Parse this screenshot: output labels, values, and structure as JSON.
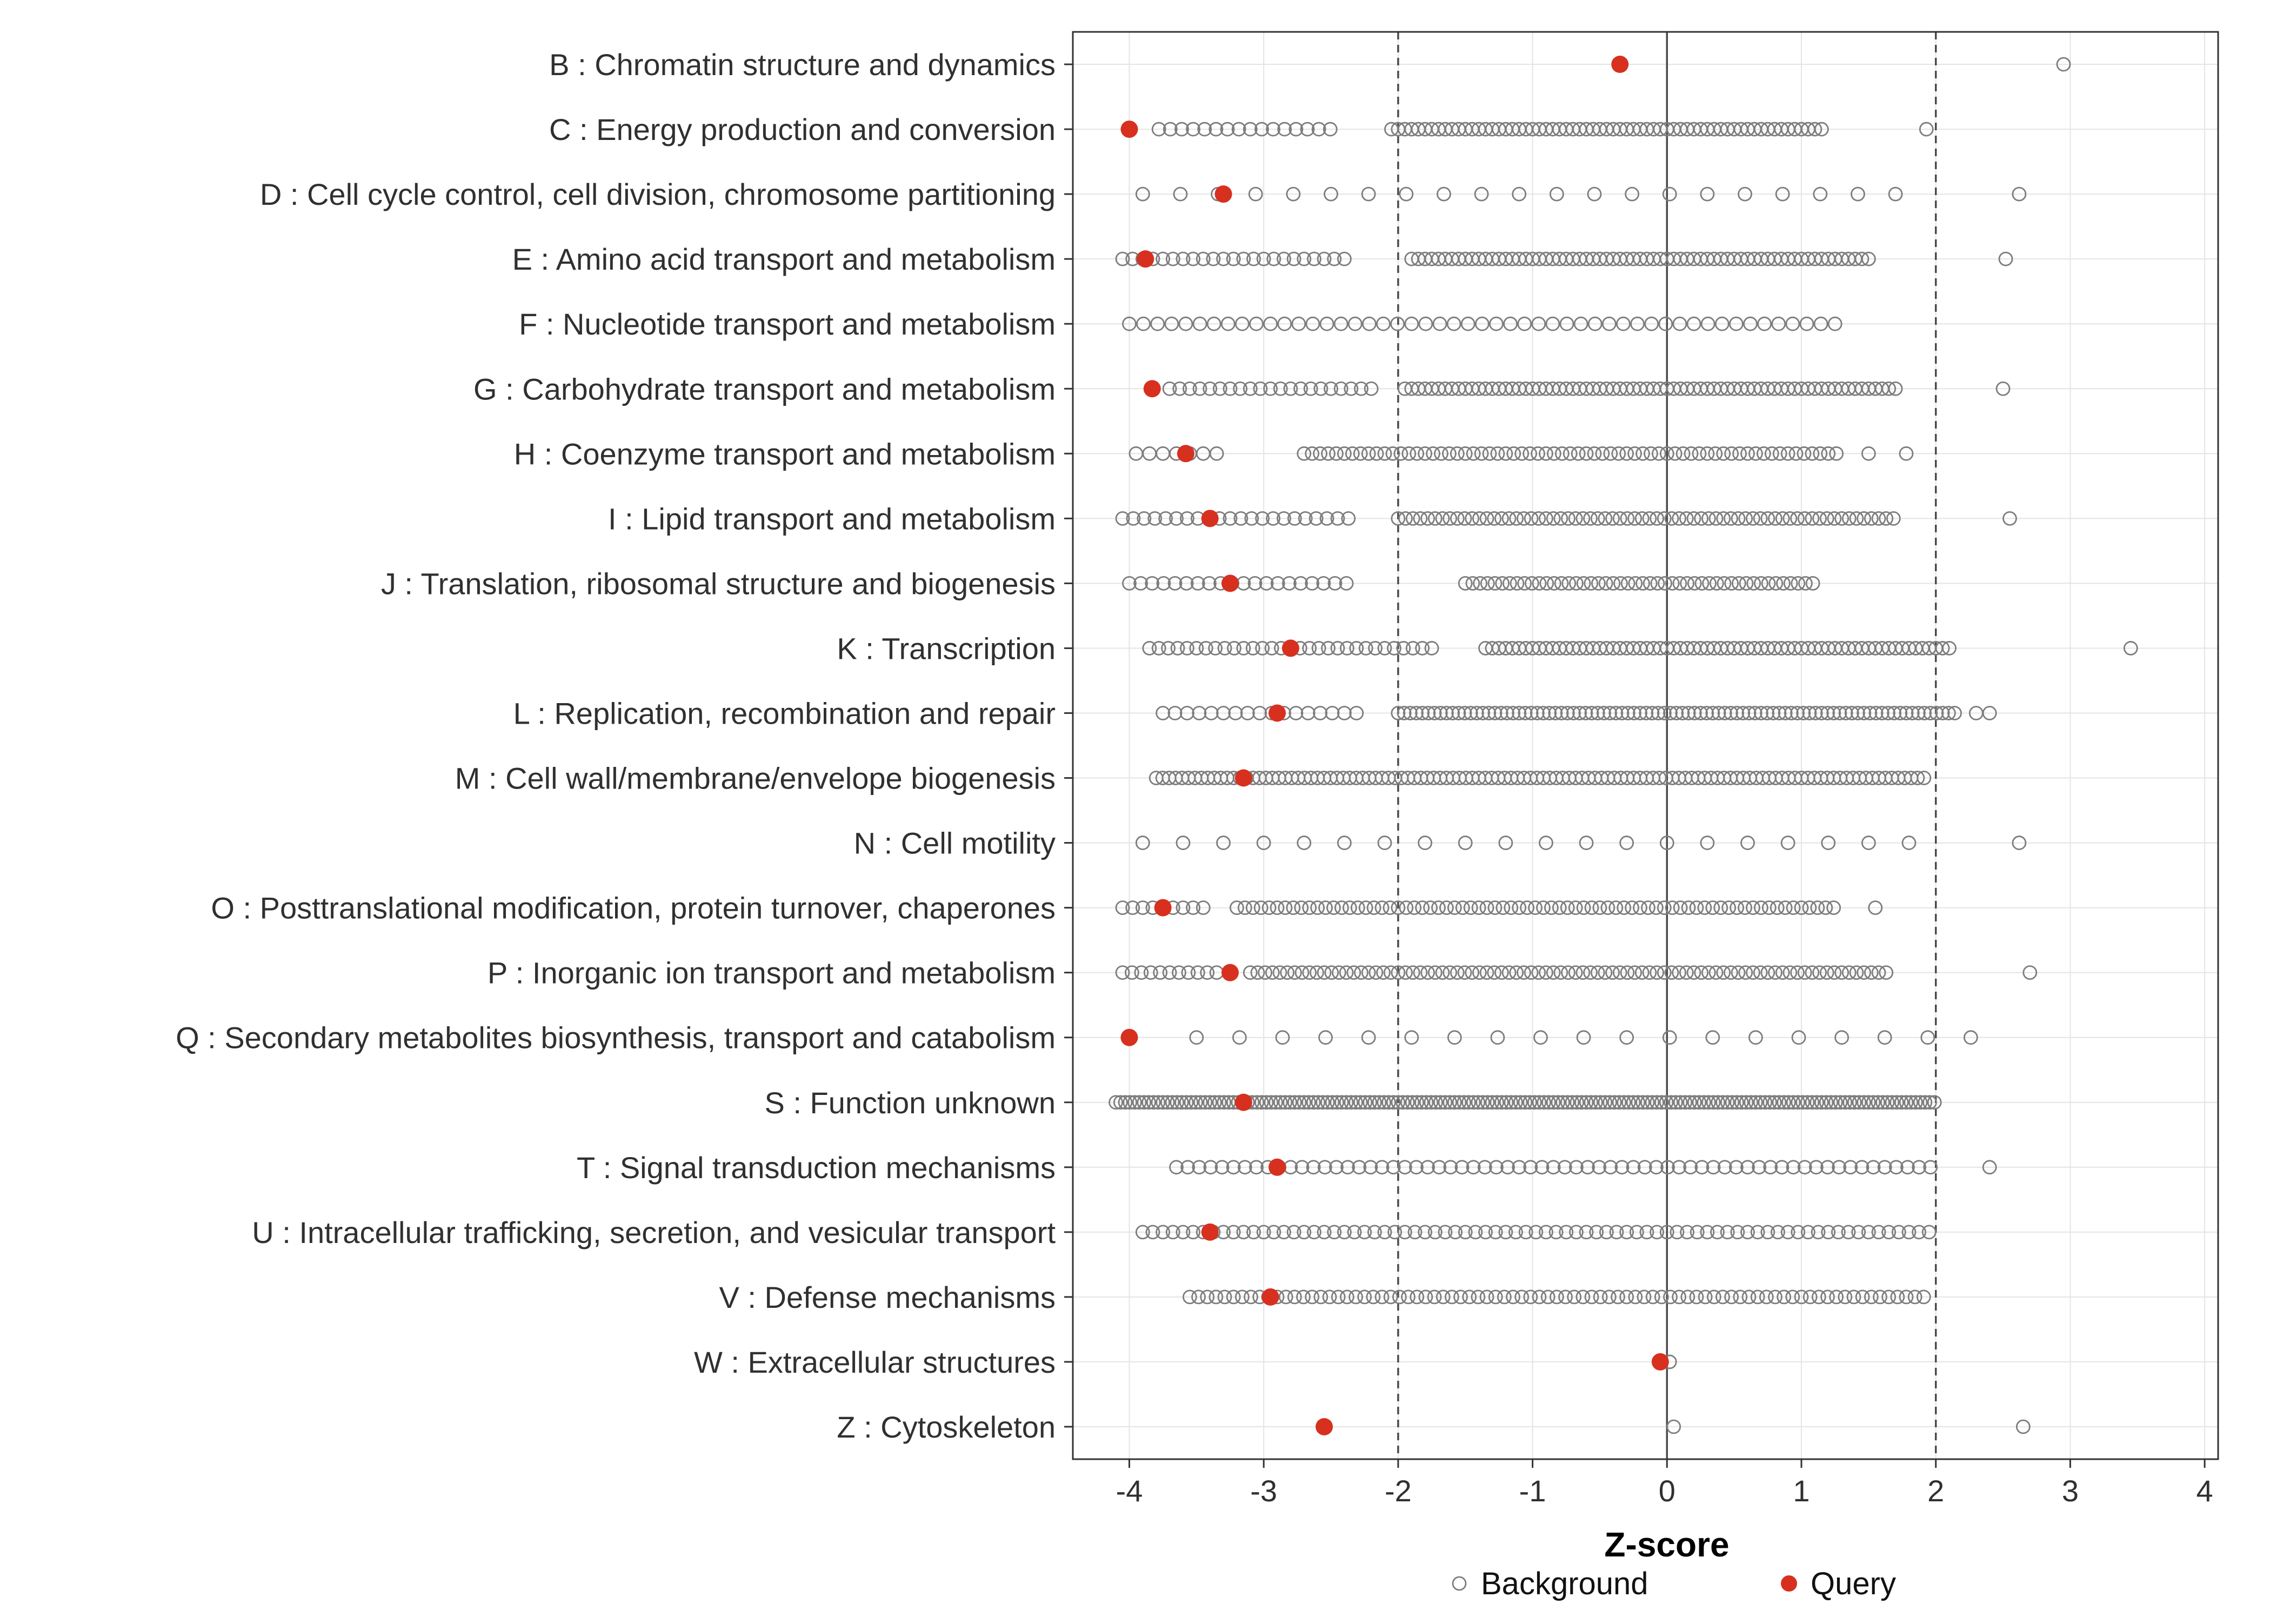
{
  "chart_data": {
    "type": "scatter",
    "title": "",
    "xlabel": "Z-score",
    "ylabel": "",
    "xlim": [
      -4.42,
      4.1
    ],
    "x_ticks": [
      -4,
      -3,
      -2,
      -1,
      0,
      1,
      2,
      3,
      4
    ],
    "reference_lines": {
      "solid": [
        0
      ],
      "dashed": [
        -2,
        2
      ]
    },
    "legend": [
      {
        "label": "Background",
        "marker": "open-circle"
      },
      {
        "label": "Query",
        "marker": "filled-circle"
      }
    ],
    "colors": {
      "query": "#d7301f",
      "background_stroke": "#7d7d7d",
      "grid": "#e4e4e4",
      "panel_border": "#333333",
      "refline": "#4a4a4a",
      "text": "#303030"
    },
    "encoding_note": "background entries are x-values (Z-scores); [start,end,step] triples denote evenly spaced runs of background points as read from the plot",
    "categories": [
      {
        "label": "B : Chromatin structure and dynamics",
        "query": -0.35,
        "background": [
          2.95
        ]
      },
      {
        "label": "C : Energy production and conversion",
        "query": -4.0,
        "background": [
          [
            -3.78,
            -2.45,
            0.085
          ],
          [
            -2.05,
            1.15,
            0.05
          ],
          1.93
        ]
      },
      {
        "label": "D : Cell cycle control, cell division, chromosome partitioning",
        "query": -3.3,
        "background": [
          [
            -3.9,
            1.75,
            0.28
          ],
          2.62
        ]
      },
      {
        "label": "E : Amino acid transport and metabolism",
        "query": -3.88,
        "background": [
          [
            -4.05,
            -2.35,
            0.075
          ],
          [
            -1.9,
            1.5,
            0.05
          ],
          2.52
        ]
      },
      {
        "label": "F : Nucleotide transport and metabolism",
        "query": null,
        "background": [
          [
            -4.0,
            1.3,
            0.105
          ]
        ]
      },
      {
        "label": "G : Carbohydrate transport and metabolism",
        "query": -3.83,
        "background": [
          [
            -3.7,
            -2.2,
            0.075
          ],
          [
            -1.95,
            1.7,
            0.05
          ],
          2.5
        ]
      },
      {
        "label": "H : Coenzyme transport and metabolism",
        "query": -3.58,
        "background": [
          [
            -3.95,
            -3.35,
            0.1
          ],
          [
            -2.7,
            1.3,
            0.06
          ],
          1.5,
          1.78
        ]
      },
      {
        "label": "I : Lipid transport and metabolism",
        "query": -3.4,
        "background": [
          [
            -4.05,
            -2.3,
            0.08
          ],
          [
            -2.0,
            1.7,
            0.055
          ],
          2.55
        ]
      },
      {
        "label": "J : Translation, ribosomal structure and biogenesis",
        "query": -3.25,
        "background": [
          [
            -4.0,
            -2.35,
            0.085
          ],
          [
            -1.5,
            1.1,
            0.055
          ]
        ]
      },
      {
        "label": "K : Transcription",
        "query": -2.8,
        "background": [
          [
            -3.85,
            -1.7,
            0.07
          ],
          [
            -1.35,
            2.1,
            0.05
          ],
          3.45
        ]
      },
      {
        "label": "L : Replication, recombination and repair",
        "query": -2.9,
        "background": [
          [
            -3.75,
            -2.3,
            0.09
          ],
          [
            -2.0,
            2.15,
            0.045
          ],
          2.3,
          2.4
        ]
      },
      {
        "label": "M : Cell wall/membrane/envelope biogenesis",
        "query": -3.15,
        "background": [
          [
            -3.8,
            1.95,
            0.048
          ]
        ]
      },
      {
        "label": "N : Cell motility",
        "query": null,
        "background": [
          [
            -3.9,
            1.8,
            0.3
          ],
          2.62
        ]
      },
      {
        "label": "O : Posttranslational modification, protein turnover, chaperones",
        "query": -3.75,
        "background": [
          [
            -4.05,
            -3.4,
            0.075
          ],
          [
            -3.2,
            1.25,
            0.06
          ],
          1.55
        ]
      },
      {
        "label": "P : Inorganic ion transport and metabolism",
        "query": -3.25,
        "background": [
          [
            -4.05,
            -3.3,
            0.07
          ],
          [
            -3.1,
            1.65,
            0.055
          ],
          2.7
        ]
      },
      {
        "label": "Q : Secondary metabolites biosynthesis, transport and catabolism",
        "query": -4.0,
        "background": [
          [
            -3.5,
            2.3,
            0.32
          ]
        ]
      },
      {
        "label": "S : Function unknown",
        "query": -3.15,
        "background": [
          [
            -4.1,
            2.0,
            0.035
          ]
        ]
      },
      {
        "label": "T : Signal transduction mechanisms",
        "query": -2.9,
        "background": [
          [
            -3.65,
            2.0,
            0.085
          ],
          2.4
        ]
      },
      {
        "label": "U : Intracellular trafficking, secretion, and vesicular transport",
        "query": -3.4,
        "background": [
          [
            -3.9,
            1.95,
            0.075
          ]
        ]
      },
      {
        "label": "V : Defense mechanisms",
        "query": -2.95,
        "background": [
          [
            -3.55,
            1.95,
            0.065
          ]
        ]
      },
      {
        "label": "W : Extracellular structures",
        "query": -0.05,
        "background": [
          0.02
        ]
      },
      {
        "label": "Z : Cytoskeleton",
        "query": -2.55,
        "background": [
          0.05,
          2.65
        ]
      }
    ]
  }
}
